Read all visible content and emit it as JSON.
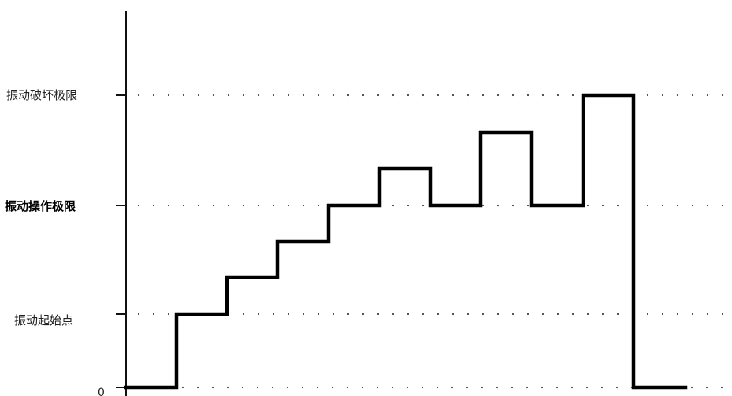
{
  "diagram": {
    "levels": [
      {
        "id": "zero",
        "label": "0",
        "value": 0
      },
      {
        "id": "start",
        "label": "振动起始点",
        "value": 1
      },
      {
        "id": "operate",
        "label": "振动操作极限",
        "value": 2
      },
      {
        "id": "destroy",
        "label": "振动破坏极限",
        "value": 3
      }
    ],
    "colors": {
      "line": "#000000",
      "axis": "#111111",
      "guide": "#444444"
    }
  }
}
